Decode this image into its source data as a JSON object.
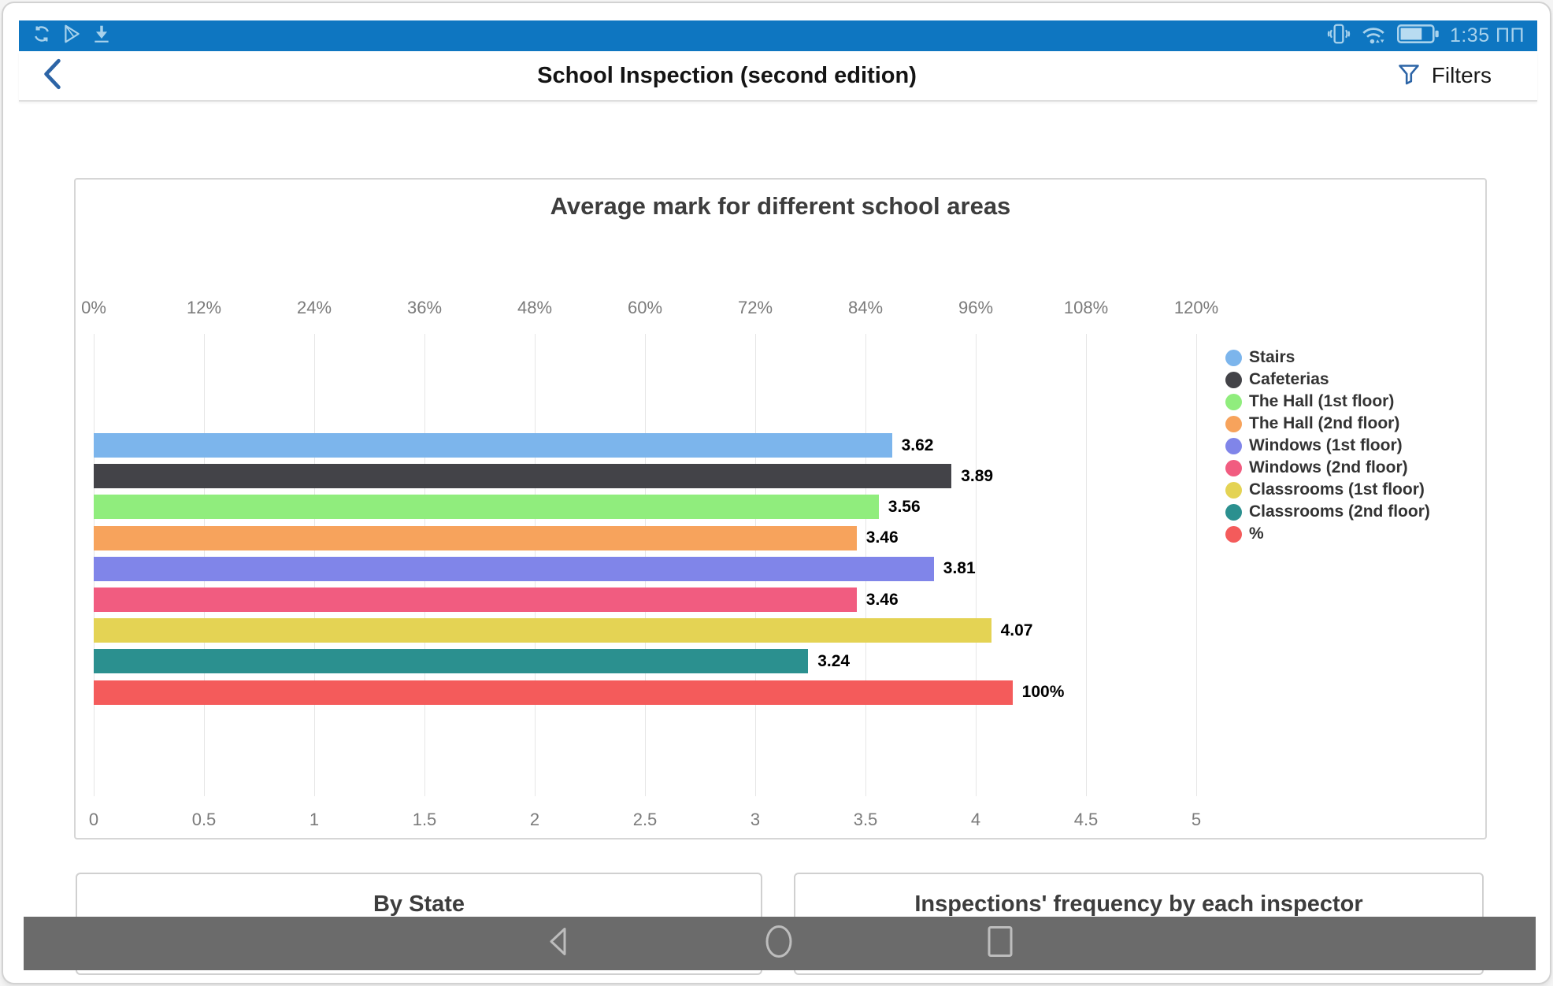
{
  "status_bar": {
    "time": "1:35 ПП",
    "left_icons": [
      "sync-icon",
      "play-store-icon",
      "download-icon"
    ],
    "right_icons": [
      "vibrate-icon",
      "wifi-icon",
      "battery-icon"
    ]
  },
  "header": {
    "title": "School Inspection (second edition)",
    "filters_label": "Filters"
  },
  "chart_data": {
    "type": "bar",
    "orientation": "horizontal",
    "title": "Average mark for different school areas",
    "grid": true,
    "legend_position": "right",
    "top_axis": {
      "min": 0,
      "max": 120,
      "ticks": [
        "0%",
        "12%",
        "24%",
        "36%",
        "48%",
        "60%",
        "72%",
        "84%",
        "96%",
        "108%",
        "120%"
      ]
    },
    "bottom_axis": {
      "min": 0,
      "max": 5,
      "ticks": [
        "0",
        "0.5",
        "1",
        "1.5",
        "2",
        "2.5",
        "3",
        "3.5",
        "4",
        "4.5",
        "5"
      ]
    },
    "series": [
      {
        "name": "Stairs",
        "color": "#7cb5ec",
        "value": 3.62,
        "label": "3.62",
        "axis": "mark"
      },
      {
        "name": "Cafeterias",
        "color": "#434348",
        "value": 3.89,
        "label": "3.89",
        "axis": "mark"
      },
      {
        "name": "The Hall (1st floor)",
        "color": "#90ed7d",
        "value": 3.56,
        "label": "3.56",
        "axis": "mark"
      },
      {
        "name": "The Hall (2nd floor)",
        "color": "#f7a35c",
        "value": 3.46,
        "label": "3.46",
        "axis": "mark"
      },
      {
        "name": "Windows (1st floor)",
        "color": "#8085e9",
        "value": 3.81,
        "label": "3.81",
        "axis": "mark"
      },
      {
        "name": "Windows (2nd floor)",
        "color": "#f15c80",
        "value": 3.46,
        "label": "3.46",
        "axis": "mark"
      },
      {
        "name": "Classrooms (1st floor)",
        "color": "#e4d354",
        "value": 4.07,
        "label": "4.07",
        "axis": "mark"
      },
      {
        "name": "Classrooms (2nd floor)",
        "color": "#2b908f",
        "value": 3.24,
        "label": "3.24",
        "axis": "mark"
      },
      {
        "name": "%",
        "color": "#f45b5b",
        "value": 100,
        "label": "100%",
        "axis": "percent"
      }
    ]
  },
  "bottom_cards": [
    {
      "title": "By State"
    },
    {
      "title": "Inspections' frequency by each inspector"
    }
  ],
  "nav_bar": {
    "icons": [
      "back-icon",
      "home-icon",
      "recents-icon"
    ]
  },
  "colors": {
    "status_bar_bg": "#0e76c1",
    "status_icon": "#a8d2ec",
    "accent_blue": "#2c64a6",
    "nav_bar_bg": "#6b6b6b",
    "nav_icon": "#bdbdbd",
    "gridline": "#e6e6e6"
  }
}
